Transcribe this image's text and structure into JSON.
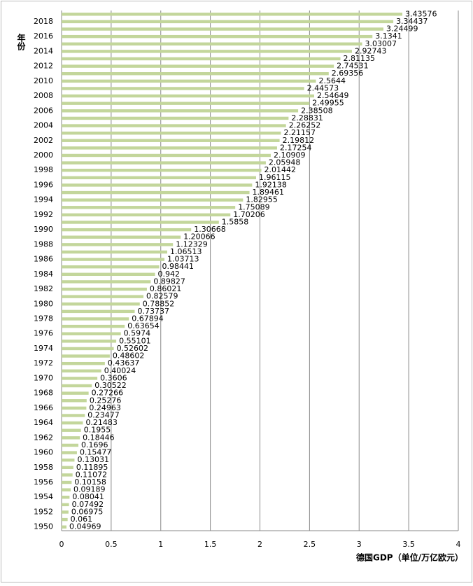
{
  "chart_data": {
    "type": "barh",
    "x_label": "德国GDP（单位/万亿欧元）",
    "y_label": "年份",
    "categories": [
      "1950",
      null,
      "1952",
      null,
      "1954",
      null,
      "1956",
      null,
      "1958",
      null,
      "1960",
      null,
      "1962",
      null,
      "1964",
      null,
      "1966",
      null,
      "1968",
      null,
      "1970",
      null,
      "1972",
      null,
      "1974",
      null,
      "1976",
      null,
      "1978",
      null,
      "1980",
      null,
      "1982",
      null,
      "1984",
      null,
      "1986",
      null,
      "1988",
      null,
      "1990",
      null,
      "1992",
      null,
      "1994",
      null,
      "1996",
      null,
      "1998",
      null,
      "2000",
      null,
      "2002",
      null,
      "2004",
      null,
      "2006",
      null,
      "2008",
      null,
      "2010",
      null,
      "2012",
      null,
      "2014",
      null,
      "2016",
      null,
      "2018",
      null
    ],
    "values": [
      0.04969,
      0.061,
      0.06975,
      0.07492,
      0.08041,
      0.09189,
      0.10158,
      0.11072,
      0.11895,
      0.13031,
      0.15477,
      0.1696,
      0.18446,
      0.1955,
      0.21483,
      0.23477,
      0.24963,
      0.25276,
      0.27266,
      0.30522,
      0.3606,
      0.40024,
      0.43637,
      0.48602,
      0.52602,
      0.55101,
      0.5974,
      0.63654,
      0.67894,
      0.73737,
      0.78852,
      0.82579,
      0.86021,
      0.89827,
      0.942,
      0.98441,
      1.03713,
      1.06513,
      1.12329,
      1.20066,
      1.30668,
      1.5858,
      1.70206,
      1.75089,
      1.82955,
      1.89461,
      1.92138,
      1.96115,
      2.01442,
      2.05948,
      2.10909,
      2.17254,
      2.19812,
      2.21157,
      2.26252,
      2.28831,
      2.38508,
      2.49955,
      2.54649,
      2.44573,
      2.5644,
      2.69356,
      2.74531,
      2.81135,
      2.92743,
      3.03007,
      3.1341,
      3.24499,
      3.34437,
      3.43576
    ],
    "color": "#c3d69b",
    "xlim": [
      0,
      4
    ],
    "xticks": [
      0,
      0.5,
      1,
      1.5,
      2,
      2.5,
      3,
      3.5,
      4
    ],
    "grid": true
  }
}
